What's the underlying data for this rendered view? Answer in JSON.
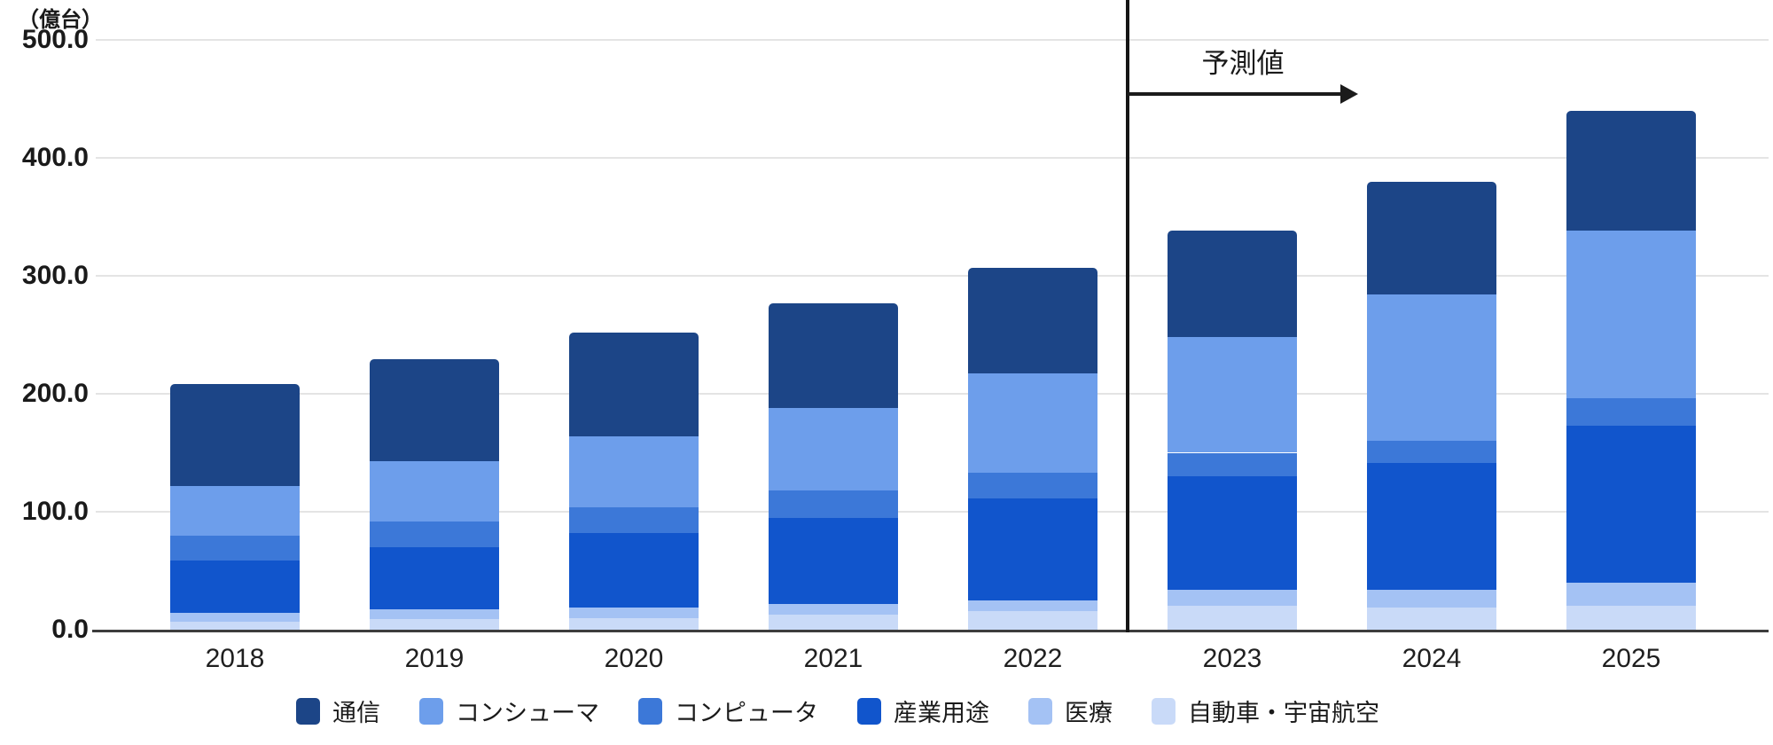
{
  "chart_data": {
    "type": "stacked-bar",
    "ylabel_unit": "（億台）",
    "ylim": [
      0,
      500
    ],
    "ytick_step": 100,
    "ytick_labels": [
      "0.0",
      "100.0",
      "200.0",
      "300.0",
      "400.0",
      "500.0"
    ],
    "grid": true,
    "legend_position": "bottom",
    "categories": [
      "2018",
      "2019",
      "2020",
      "2021",
      "2022",
      "2023",
      "2024",
      "2025"
    ],
    "series": [
      {
        "name": "通信",
        "color": "#1c4587",
        "values": [
          86,
          86,
          88,
          89,
          90,
          90,
          96,
          102
        ]
      },
      {
        "name": "コンシューマ",
        "color": "#6d9eeb",
        "values": [
          42,
          51,
          60,
          70,
          84,
          98,
          124,
          142
        ]
      },
      {
        "name": "コンピュータ",
        "color": "#3c78d8",
        "values": [
          21,
          22,
          22,
          23,
          22,
          20,
          19,
          23
        ]
      },
      {
        "name": "産業用途",
        "color": "#1155cc",
        "values": [
          45,
          53,
          63,
          73,
          86,
          96,
          107,
          133
        ]
      },
      {
        "name": "医療",
        "color": "#a4c2f4",
        "values": [
          7,
          8,
          9,
          9,
          9,
          14,
          15,
          20
        ]
      },
      {
        "name": "自動車・宇宙航空",
        "color": "#c9daf8",
        "values": [
          7,
          9,
          10,
          13,
          16,
          20,
          19,
          20
        ]
      }
    ],
    "stack_order_bottom_to_top": [
      "自動車・宇宙航空",
      "医療",
      "産業用途",
      "コンピュータ",
      "コンシューマ",
      "通信"
    ],
    "totals_estimated": [
      208,
      229,
      252,
      277,
      307,
      338,
      380,
      440
    ],
    "forecast": {
      "label": "予測値",
      "divider_after_category": "2022",
      "applies_to": [
        "2023",
        "2024",
        "2025"
      ]
    },
    "colors": {
      "gridline": "#e4e4e4",
      "axis_line": "#3d3d3d",
      "divider": "#151515",
      "text": "#1a1a1a",
      "background": "#ffffff"
    }
  }
}
